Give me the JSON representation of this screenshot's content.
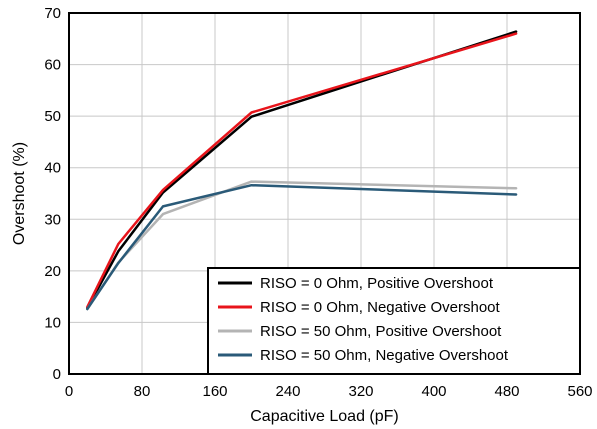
{
  "chart_data": {
    "type": "line",
    "title": "",
    "xlabel": "Capacitive Load (pF)",
    "ylabel": "Overshoot (%)",
    "xlim": [
      0,
      560
    ],
    "ylim": [
      0,
      70
    ],
    "xticks": [
      0,
      80,
      160,
      240,
      320,
      400,
      480,
      560
    ],
    "yticks": [
      0,
      10,
      20,
      30,
      40,
      50,
      60,
      70
    ],
    "grid": true,
    "legend_position": "bottom-right",
    "series": [
      {
        "name": "RISO = 0 Ohm, Positive Overshoot",
        "color": "#000000",
        "x": [
          20,
          54,
          103,
          200,
          490
        ],
        "y": [
          12.8,
          23.8,
          35.2,
          49.9,
          66.4
        ]
      },
      {
        "name": "RISO = 0 Ohm, Negative Overshoot",
        "color": "#e8141b",
        "x": [
          20,
          54,
          103,
          200,
          490
        ],
        "y": [
          13.0,
          25.2,
          35.7,
          50.7,
          66.0
        ]
      },
      {
        "name": "RISO = 50 Ohm, Positive Overshoot",
        "color": "#b4b4b4",
        "x": [
          20,
          54,
          103,
          200,
          490
        ],
        "y": [
          12.6,
          21.6,
          31.0,
          37.3,
          36.0
        ]
      },
      {
        "name": "RISO = 50 Ohm, Negative Overshoot",
        "color": "#2a5a78",
        "x": [
          20,
          54,
          103,
          200,
          490
        ],
        "y": [
          12.6,
          21.5,
          32.5,
          36.6,
          34.8
        ]
      }
    ]
  }
}
